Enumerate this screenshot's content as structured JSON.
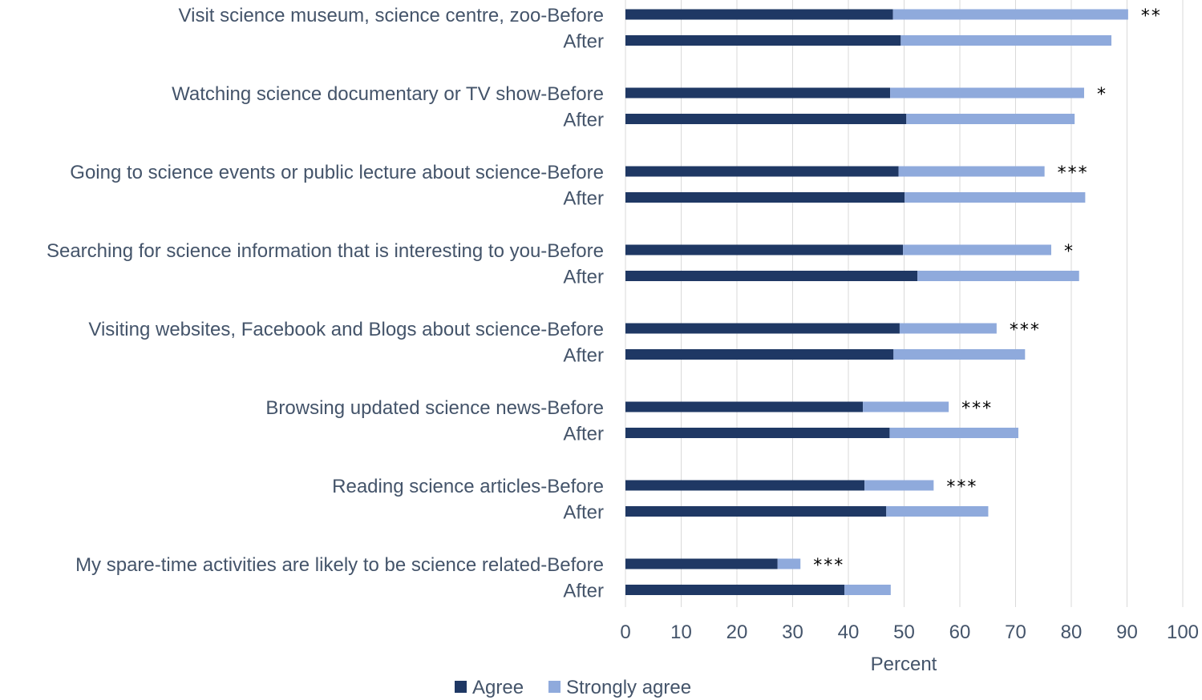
{
  "chart_data": {
    "type": "bar",
    "orientation": "horizontal",
    "stacked": true,
    "categories": [
      "Visit science museum, science centre, zoo-Before",
      "After",
      "Watching science documentary or TV show-Before",
      "After",
      "Going to science events or public lecture about science-Before",
      "After",
      "Searching for science information that is interesting to you-Before",
      "After",
      "Visiting websites, Facebook and Blogs about science-Before",
      "After",
      "Browsing updated science news-Before",
      "After",
      "Reading science articles-Before",
      "After",
      "My spare-time activities are likely to be science related-Before",
      "After"
    ],
    "series": [
      {
        "name": "Agree",
        "color": "#1f3864",
        "values": [
          48.0,
          49.4,
          47.5,
          50.4,
          49.0,
          50.1,
          49.8,
          52.4,
          49.2,
          48.1,
          42.6,
          47.4,
          42.9,
          46.8,
          27.3,
          39.3
        ]
      },
      {
        "name": "Strongly agree",
        "color": "#8faadc",
        "values": [
          42.2,
          37.8,
          34.8,
          30.2,
          26.2,
          32.4,
          26.6,
          29.0,
          17.4,
          23.6,
          15.4,
          23.1,
          12.4,
          18.3,
          4.1,
          8.3
        ]
      }
    ],
    "annotations": [
      "**",
      "",
      "*",
      "",
      "***",
      "",
      "*",
      "",
      "***",
      "",
      "***",
      "",
      "***",
      "",
      "***",
      ""
    ],
    "xlabel": "Percent",
    "xlim": [
      0,
      100
    ],
    "xticks": [
      "0",
      "10",
      "20",
      "30",
      "40",
      "50",
      "60",
      "70",
      "80",
      "90",
      "100"
    ],
    "grid": "vertical",
    "legend_position": "bottom"
  }
}
